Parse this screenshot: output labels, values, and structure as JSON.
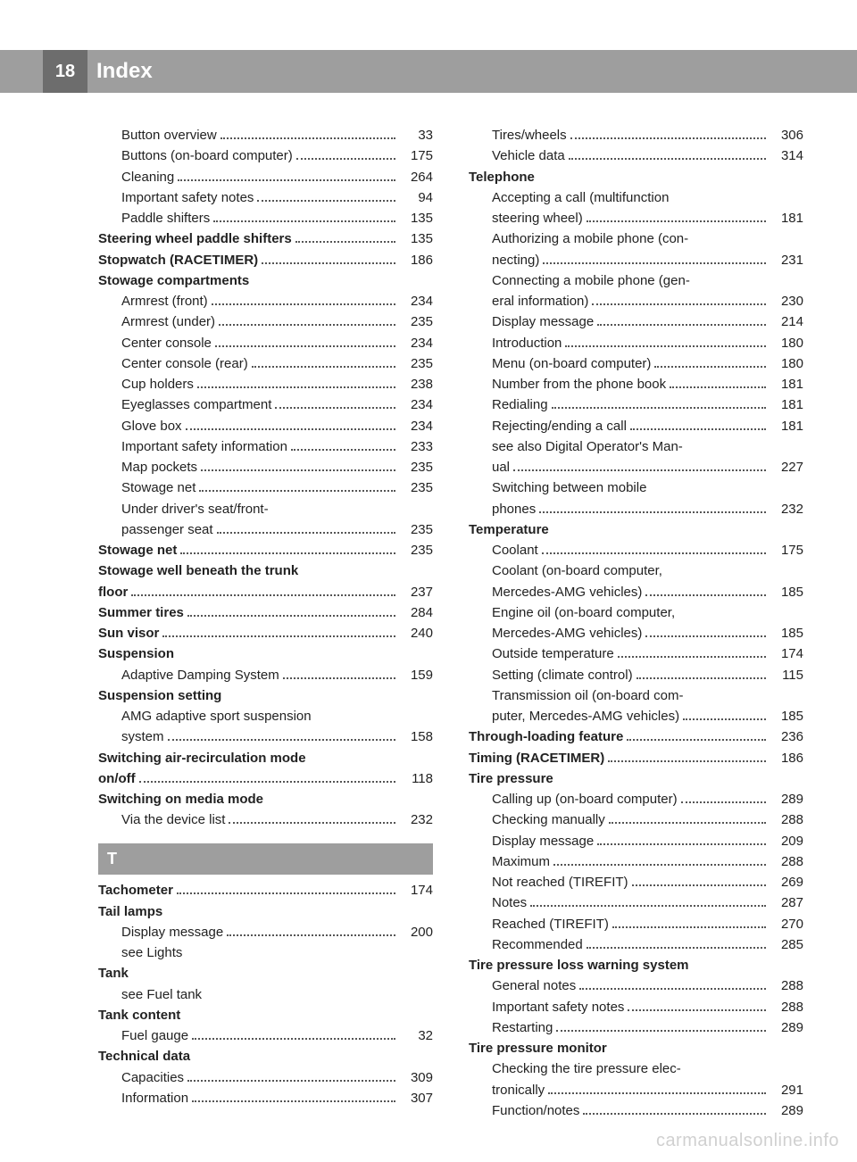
{
  "header": {
    "page_number": "18",
    "title": "Index"
  },
  "watermark": "carmanualsonline.info",
  "colors": {
    "bar": "#9e9e9e",
    "numbox": "#6d6d6d",
    "text": "#222222",
    "white": "#ffffff"
  },
  "columns": [
    {
      "items": [
        {
          "type": "entry",
          "sub": true,
          "label": "Button overview",
          "page": "33"
        },
        {
          "type": "entry",
          "sub": true,
          "label": "Buttons (on-board computer)",
          "page": "175"
        },
        {
          "type": "entry",
          "sub": true,
          "label": "Cleaning",
          "page": "264"
        },
        {
          "type": "entry",
          "sub": true,
          "label": "Important safety notes",
          "page": "94"
        },
        {
          "type": "entry",
          "sub": true,
          "label": "Paddle shifters",
          "page": "135"
        },
        {
          "type": "entry",
          "bold": true,
          "label": "Steering wheel paddle shifters",
          "page": "135"
        },
        {
          "type": "entry",
          "bold": true,
          "label": "Stopwatch (RACETIMER)",
          "page": "186"
        },
        {
          "type": "heading",
          "label": "Stowage compartments"
        },
        {
          "type": "entry",
          "sub": true,
          "label": "Armrest (front)",
          "page": "234"
        },
        {
          "type": "entry",
          "sub": true,
          "label": "Armrest (under)",
          "page": "235"
        },
        {
          "type": "entry",
          "sub": true,
          "label": "Center console",
          "page": "234"
        },
        {
          "type": "entry",
          "sub": true,
          "label": "Center console (rear)",
          "page": "235"
        },
        {
          "type": "entry",
          "sub": true,
          "label": "Cup holders",
          "page": "238"
        },
        {
          "type": "entry",
          "sub": true,
          "label": "Eyeglasses compartment",
          "page": "234"
        },
        {
          "type": "entry",
          "sub": true,
          "label": "Glove box",
          "page": "234"
        },
        {
          "type": "entry",
          "sub": true,
          "label": "Important safety information",
          "page": "233"
        },
        {
          "type": "entry",
          "sub": true,
          "label": "Map pockets",
          "page": "235"
        },
        {
          "type": "entry",
          "sub": true,
          "label": "Stowage net",
          "page": "235"
        },
        {
          "type": "entry",
          "sub": true,
          "label": "Under driver's seat/front-\npassenger seat",
          "page": "235"
        },
        {
          "type": "entry",
          "bold": true,
          "label": "Stowage net",
          "page": "235"
        },
        {
          "type": "entry",
          "bold": true,
          "label": "Stowage well beneath the trunk\nfloor",
          "page": "237",
          "bold_last": false
        },
        {
          "type": "entry",
          "bold": true,
          "label": "Summer tires",
          "page": "284"
        },
        {
          "type": "entry",
          "bold": true,
          "label": "Sun visor",
          "page": "240"
        },
        {
          "type": "heading",
          "label": "Suspension"
        },
        {
          "type": "entry",
          "sub": true,
          "label": "Adaptive Damping System",
          "page": "159"
        },
        {
          "type": "heading",
          "label": "Suspension setting"
        },
        {
          "type": "entry",
          "sub": true,
          "label": "AMG adaptive sport suspension\nsystem",
          "page": "158"
        },
        {
          "type": "entry",
          "bold": true,
          "label": "Switching air-recirculation mode\non/off",
          "page": "118"
        },
        {
          "type": "heading",
          "label": "Switching on media mode"
        },
        {
          "type": "entry",
          "sub": true,
          "label": "Via the device list",
          "page": "232"
        },
        {
          "type": "section",
          "label": "T"
        },
        {
          "type": "entry",
          "bold": true,
          "label": "Tachometer",
          "page": "174"
        },
        {
          "type": "heading",
          "label": "Tail lamps"
        },
        {
          "type": "entry",
          "sub": true,
          "label": "Display message",
          "page": "200"
        },
        {
          "type": "plain",
          "sub": true,
          "label": "see Lights"
        },
        {
          "type": "heading",
          "label": "Tank"
        },
        {
          "type": "plain",
          "sub": true,
          "label": "see Fuel tank"
        },
        {
          "type": "heading",
          "label": "Tank content"
        },
        {
          "type": "entry",
          "sub": true,
          "label": "Fuel gauge",
          "page": "32"
        },
        {
          "type": "heading",
          "label": "Technical data"
        },
        {
          "type": "entry",
          "sub": true,
          "label": "Capacities",
          "page": "309"
        },
        {
          "type": "entry",
          "sub": true,
          "label": "Information",
          "page": "307"
        }
      ]
    },
    {
      "items": [
        {
          "type": "entry",
          "sub": true,
          "label": "Tires/wheels",
          "page": "306"
        },
        {
          "type": "entry",
          "sub": true,
          "label": "Vehicle data",
          "page": "314"
        },
        {
          "type": "heading",
          "label": "Telephone"
        },
        {
          "type": "entry",
          "sub": true,
          "label": "Accepting a call (multifunction\nsteering wheel)",
          "page": "181"
        },
        {
          "type": "entry",
          "sub": true,
          "label": "Authorizing a mobile phone (con-\nnecting)",
          "page": "231"
        },
        {
          "type": "entry",
          "sub": true,
          "label": "Connecting a mobile phone (gen-\neral information)",
          "page": "230"
        },
        {
          "type": "entry",
          "sub": true,
          "label": "Display message",
          "page": "214"
        },
        {
          "type": "entry",
          "sub": true,
          "label": "Introduction",
          "page": "180"
        },
        {
          "type": "entry",
          "sub": true,
          "label": "Menu (on-board computer)",
          "page": "180"
        },
        {
          "type": "entry",
          "sub": true,
          "label": "Number from the phone book",
          "page": "181"
        },
        {
          "type": "entry",
          "sub": true,
          "label": "Redialing",
          "page": "181"
        },
        {
          "type": "entry",
          "sub": true,
          "label": "Rejecting/ending a call",
          "page": "181"
        },
        {
          "type": "entry",
          "sub": true,
          "label": "see also Digital Operator's Man-\nual",
          "page": "227"
        },
        {
          "type": "entry",
          "sub": true,
          "label": "Switching between mobile\nphones",
          "page": "232"
        },
        {
          "type": "heading",
          "label": "Temperature"
        },
        {
          "type": "entry",
          "sub": true,
          "label": "Coolant",
          "page": "175"
        },
        {
          "type": "entry",
          "sub": true,
          "label": "Coolant (on-board computer,\nMercedes-AMG vehicles)",
          "page": "185"
        },
        {
          "type": "entry",
          "sub": true,
          "label": "Engine oil (on-board computer,\nMercedes-AMG vehicles)",
          "page": "185"
        },
        {
          "type": "entry",
          "sub": true,
          "label": "Outside temperature",
          "page": "174"
        },
        {
          "type": "entry",
          "sub": true,
          "label": "Setting (climate control)",
          "page": "115"
        },
        {
          "type": "entry",
          "sub": true,
          "label": "Transmission oil (on-board com-\nputer, Mercedes-AMG vehicles)",
          "page": "185"
        },
        {
          "type": "entry",
          "bold": true,
          "label": "Through-loading feature",
          "page": "236"
        },
        {
          "type": "entry",
          "bold": true,
          "label": "Timing (RACETIMER)",
          "page": "186"
        },
        {
          "type": "heading",
          "label": "Tire pressure"
        },
        {
          "type": "entry",
          "sub": true,
          "label": "Calling up (on-board computer)",
          "page": "289"
        },
        {
          "type": "entry",
          "sub": true,
          "label": "Checking manually",
          "page": "288"
        },
        {
          "type": "entry",
          "sub": true,
          "label": "Display message",
          "page": "209"
        },
        {
          "type": "entry",
          "sub": true,
          "label": "Maximum",
          "page": "288"
        },
        {
          "type": "entry",
          "sub": true,
          "label": "Not reached (TIREFIT)",
          "page": "269"
        },
        {
          "type": "entry",
          "sub": true,
          "label": "Notes",
          "page": "287"
        },
        {
          "type": "entry",
          "sub": true,
          "label": "Reached (TIREFIT)",
          "page": "270"
        },
        {
          "type": "entry",
          "sub": true,
          "label": "Recommended",
          "page": "285"
        },
        {
          "type": "heading",
          "label": "Tire pressure loss warning system"
        },
        {
          "type": "entry",
          "sub": true,
          "label": "General notes",
          "page": "288"
        },
        {
          "type": "entry",
          "sub": true,
          "label": "Important safety notes",
          "page": "288"
        },
        {
          "type": "entry",
          "sub": true,
          "label": "Restarting",
          "page": "289"
        },
        {
          "type": "heading",
          "label": "Tire pressure monitor"
        },
        {
          "type": "entry",
          "sub": true,
          "label": "Checking the tire pressure elec-\ntronically",
          "page": "291"
        },
        {
          "type": "entry",
          "sub": true,
          "label": "Function/notes",
          "page": "289"
        }
      ]
    }
  ]
}
